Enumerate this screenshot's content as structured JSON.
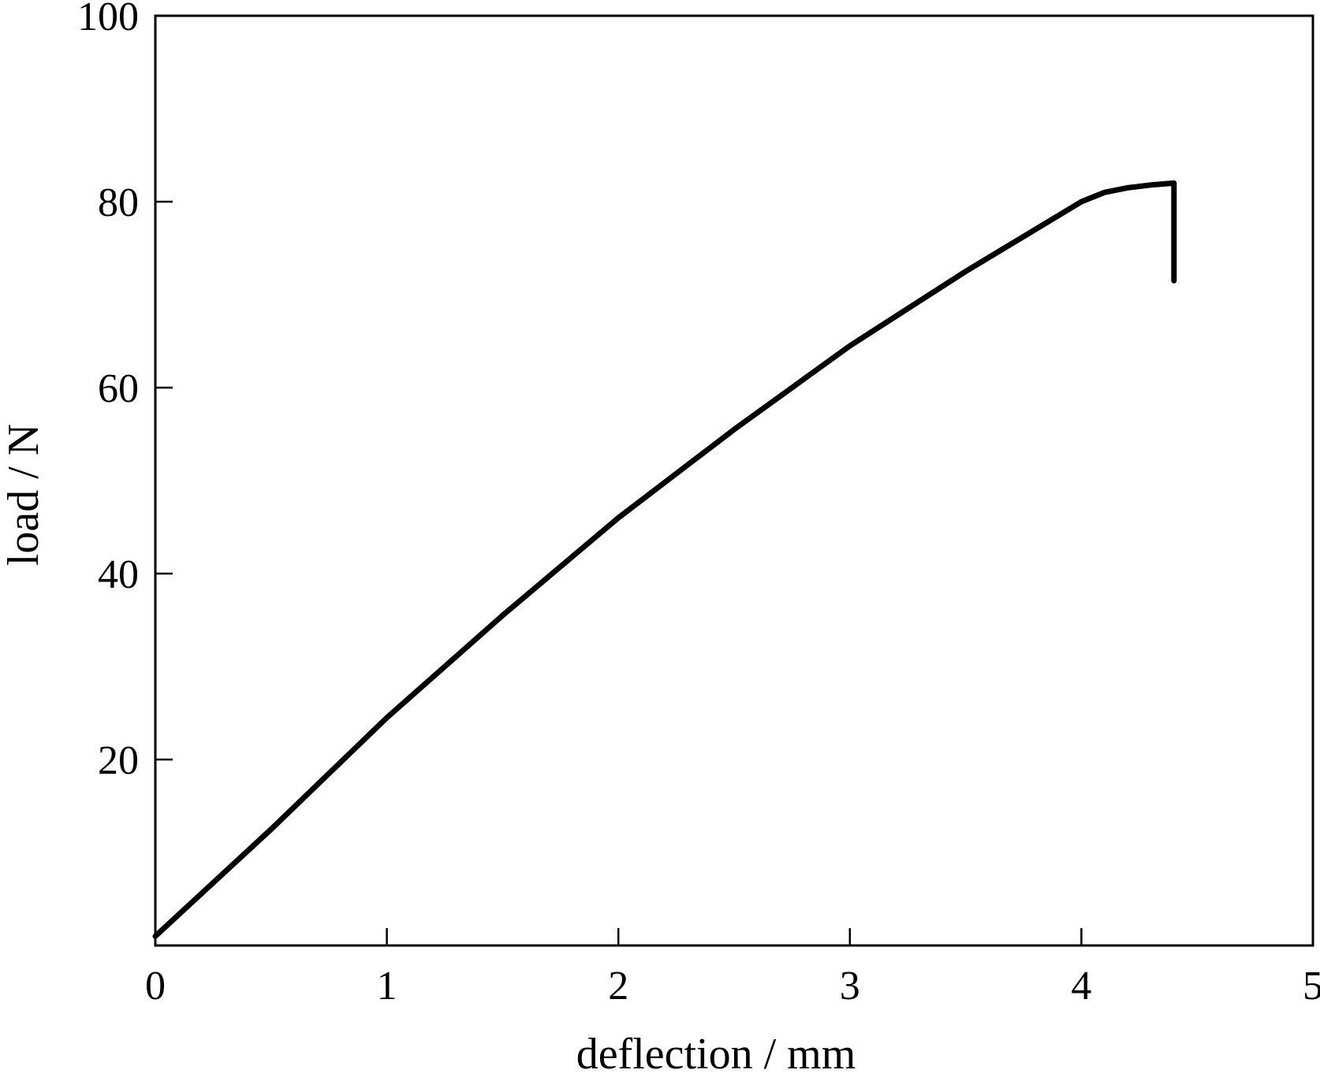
{
  "chart_data": {
    "type": "line",
    "title": "",
    "xlabel": "deflection / mm",
    "ylabel": "load / N",
    "xlim": [
      0,
      5
    ],
    "ylim": [
      0,
      100
    ],
    "xticks": [
      0,
      1,
      2,
      3,
      4,
      5
    ],
    "yticks": [
      20,
      40,
      60,
      80,
      100
    ],
    "xtick_labels": [
      "0",
      "1",
      "2",
      "3",
      "4",
      "5"
    ],
    "ytick_labels": [
      "20",
      "40",
      "60",
      "80",
      "100"
    ],
    "grid": false,
    "legend": "none",
    "line_color": "#000000",
    "series": [
      {
        "x": [
          0.0,
          0.5,
          1.0,
          1.5,
          2.0,
          2.5,
          3.0,
          3.5,
          3.9,
          4.0,
          4.1,
          4.2,
          4.3,
          4.4,
          4.4
        ],
        "y": [
          1.0,
          12.5,
          24.5,
          35.5,
          46.0,
          55.5,
          64.5,
          72.5,
          78.5,
          80.0,
          81.0,
          81.5,
          81.8,
          82.0,
          71.5
        ]
      }
    ]
  }
}
